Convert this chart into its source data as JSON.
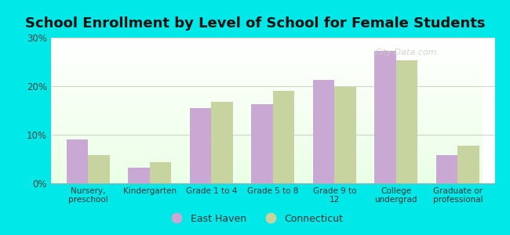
{
  "title": "School Enrollment by Level of School for Female Students",
  "categories": [
    "Nursery,\npreschool",
    "Kindergarten",
    "Grade 1 to 4",
    "Grade 5 to 8",
    "Grade 9 to\n12",
    "College\nundergrad",
    "Graduate or\nprofessional"
  ],
  "east_haven": [
    9.0,
    3.3,
    15.5,
    16.3,
    21.3,
    27.3,
    5.8
  ],
  "connecticut": [
    5.8,
    4.3,
    16.8,
    19.0,
    19.8,
    25.3,
    7.8
  ],
  "bar_color_eh": "#c9a8d4",
  "bar_color_ct": "#c8d4a0",
  "ylim": [
    0,
    30
  ],
  "yticks": [
    0,
    10,
    20,
    30
  ],
  "yticklabels": [
    "0%",
    "10%",
    "20%",
    "30%"
  ],
  "legend_eh": "East Haven",
  "legend_ct": "Connecticut",
  "bg_outer": "#00e8e8",
  "title_fontsize": 13,
  "bar_width": 0.35,
  "grid_color": "#d0d8c8",
  "watermark": "City-Data.com",
  "watermark_color": "#cccccc"
}
